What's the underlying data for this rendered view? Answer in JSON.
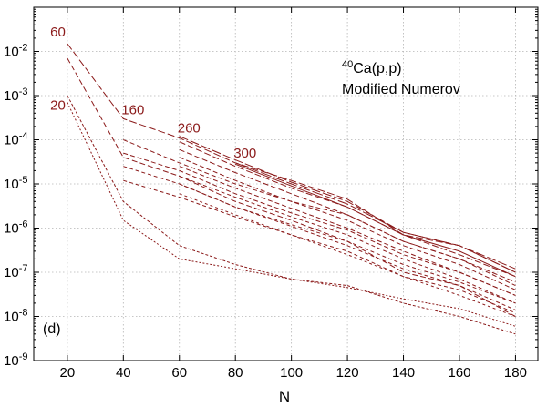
{
  "chart_data": {
    "type": "line",
    "title": "",
    "annotation_nucleus": "40",
    "annotation_reaction": "Ca(p,p)",
    "annotation_method": "Modified Numerov",
    "panel_label": "(d)",
    "xlabel": "N",
    "ylabel": "",
    "xlim": [
      8,
      188
    ],
    "ylim": [
      1e-09,
      0.1
    ],
    "y_scale": "log",
    "grid": true,
    "xticks": [
      20,
      40,
      60,
      80,
      100,
      120,
      140,
      160,
      180
    ],
    "yticks": [
      {
        "exp": -9,
        "label": "10",
        "sup": "-9"
      },
      {
        "exp": -8,
        "label": "10",
        "sup": "-8"
      },
      {
        "exp": -7,
        "label": "10",
        "sup": "-7"
      },
      {
        "exp": -6,
        "label": "10",
        "sup": "-6"
      },
      {
        "exp": -5,
        "label": "10",
        "sup": "-5"
      },
      {
        "exp": -4,
        "label": "10",
        "sup": "-4"
      },
      {
        "exp": -3,
        "label": "10",
        "sup": "-3"
      },
      {
        "exp": -2,
        "label": "10",
        "sup": "-2"
      }
    ],
    "line_color": "#8b1a1a",
    "curve_labels": [
      {
        "text": "60",
        "x": 20,
        "y": 0.018
      },
      {
        "text": "20",
        "x": 20,
        "y": 0.0007
      },
      {
        "text": "160",
        "x": 40,
        "y": 0.0003
      },
      {
        "text": "260",
        "x": 60,
        "y": 0.00012
      },
      {
        "text": "300",
        "x": 80,
        "y": 3e-05
      }
    ],
    "series": [
      {
        "dash": "8 3",
        "x": [
          20,
          40,
          60,
          80,
          100,
          120,
          140,
          160,
          180
        ],
        "y": [
          0.015,
          0.0003,
          0.00011,
          3e-05,
          1.2e-05,
          4.5e-06,
          7e-07,
          4e-07,
          1e-07
        ]
      },
      {
        "dash": "3 2",
        "x": [
          20,
          40,
          60,
          80,
          100,
          120,
          140,
          160,
          180
        ],
        "y": [
          0.001,
          4e-06,
          4e-07,
          1.5e-07,
          7e-08,
          5e-08,
          2e-08,
          1e-08,
          4e-09
        ]
      },
      {
        "dash": "2 2",
        "x": [
          20,
          40,
          60,
          80,
          100,
          120,
          140,
          160,
          180
        ],
        "y": [
          0.0007,
          1.5e-06,
          2e-07,
          1.2e-07,
          7e-08,
          4.5e-08,
          2.5e-08,
          1.5e-08,
          6e-09
        ]
      },
      {
        "dash": "6 3",
        "x": [
          20,
          40,
          60,
          80,
          100,
          120,
          140,
          160,
          180
        ],
        "y": [
          0.007,
          4e-05,
          1.5e-05,
          4e-06,
          1.5e-06,
          5e-07,
          1e-07,
          5e-08,
          1e-08
        ]
      },
      {
        "dash": "5 3",
        "x": [
          40,
          60,
          80,
          100,
          120,
          140,
          160,
          180
        ],
        "y": [
          0.0001,
          3e-05,
          1e-05,
          4e-06,
          2e-06,
          5e-07,
          2e-07,
          5e-08
        ]
      },
      {
        "dash": "5 3",
        "x": [
          40,
          60,
          80,
          100,
          120,
          140,
          160,
          180
        ],
        "y": [
          5e-05,
          2e-05,
          6e-06,
          2.2e-06,
          9e-07,
          2.5e-07,
          1e-07,
          3e-08
        ]
      },
      {
        "dash": "4 3",
        "x": [
          40,
          60,
          80,
          100,
          120,
          140,
          160,
          180
        ],
        "y": [
          2.5e-05,
          1e-05,
          3e-06,
          1.2e-06,
          5e-07,
          1.5e-07,
          6e-08,
          2e-08
        ]
      },
      {
        "dash": "4 3",
        "x": [
          40,
          60,
          80,
          100,
          120,
          140,
          160,
          180
        ],
        "y": [
          1.2e-05,
          5e-06,
          1.8e-06,
          7e-07,
          3e-07,
          8e-08,
          4e-08,
          1.2e-08
        ]
      },
      {
        "dash": "10 3",
        "x": [
          60,
          80,
          100,
          120,
          140,
          160,
          180
        ],
        "y": [
          0.00012,
          3.5e-05,
          1.1e-05,
          4e-06,
          8e-07,
          4e-07,
          1.2e-07
        ]
      },
      {
        "dash": "7 3",
        "x": [
          60,
          80,
          100,
          120,
          140,
          160,
          180
        ],
        "y": [
          9e-05,
          2.5e-05,
          8e-06,
          3e-06,
          7e-07,
          2.5e-07,
          8e-08
        ]
      },
      {
        "dash": "6 3",
        "x": [
          60,
          80,
          100,
          120,
          140,
          160,
          180
        ],
        "y": [
          6e-05,
          1.8e-05,
          6e-06,
          2e-06,
          5e-07,
          2e-07,
          6e-08
        ]
      },
      {
        "dash": "5 3",
        "x": [
          60,
          80,
          100,
          120,
          140,
          160,
          180
        ],
        "y": [
          4e-05,
          1.2e-05,
          4e-06,
          1.5e-06,
          4e-07,
          1.5e-07,
          4e-08
        ]
      },
      {
        "dash": "5 3",
        "x": [
          60,
          80,
          100,
          120,
          140,
          160,
          180
        ],
        "y": [
          2.5e-05,
          8e-06,
          2.8e-06,
          1e-06,
          3e-07,
          1e-07,
          3e-08
        ]
      },
      {
        "dash": "4 3",
        "x": [
          60,
          80,
          100,
          120,
          140,
          160,
          180
        ],
        "y": [
          1.5e-05,
          5e-06,
          1.8e-06,
          7e-07,
          2e-07,
          7e-08,
          2e-08
        ]
      },
      {
        "dash": "4 3",
        "x": [
          60,
          80,
          100,
          120,
          140,
          160,
          180
        ],
        "y": [
          1e-05,
          3e-06,
          1.1e-06,
          4e-07,
          1.2e-07,
          5e-08,
          1.4e-08
        ]
      },
      {
        "dash": "3 3",
        "x": [
          60,
          80,
          100,
          120,
          140,
          160,
          180
        ],
        "y": [
          6e-06,
          2e-06,
          7e-07,
          2.5e-07,
          8e-08,
          3e-08,
          1e-08
        ]
      },
      {
        "dash": "12 3",
        "x": [
          80,
          100,
          120,
          140,
          160,
          180
        ],
        "y": [
          3e-05,
          1e-05,
          3.5e-06,
          8e-07,
          4e-07,
          1e-07
        ]
      },
      {
        "dash": "",
        "x": [
          80,
          100,
          120,
          140,
          160,
          180
        ],
        "y": [
          2.8e-05,
          9e-06,
          3e-06,
          7e-07,
          3e-07,
          8e-08
        ]
      }
    ]
  }
}
